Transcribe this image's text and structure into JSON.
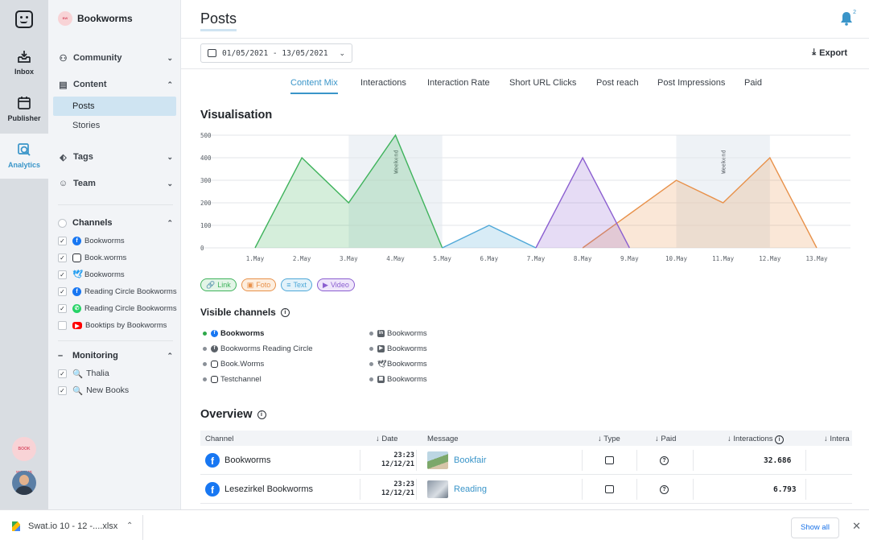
{
  "rail": {
    "items": [
      {
        "label": "Inbox",
        "icon": "inbox-icon"
      },
      {
        "label": "Publisher",
        "icon": "calendar-icon"
      },
      {
        "label": "Analytics",
        "icon": "analytics-icon"
      }
    ]
  },
  "sidebar": {
    "brand": "Bookworms",
    "nav": [
      {
        "label": "Community",
        "icon": "community-icon",
        "chevron": "⌄"
      },
      {
        "label": "Content",
        "icon": "content-icon",
        "chevron": "⌃"
      }
    ],
    "content_sub": [
      "Posts",
      "Stories"
    ],
    "nav2": [
      {
        "label": "Tags",
        "icon": "tag-icon"
      },
      {
        "label": "Team",
        "icon": "smiley-icon"
      }
    ],
    "channels_title": "Channels",
    "channels": [
      {
        "label": "Bookworms",
        "network": "facebook",
        "checked": true
      },
      {
        "label": "Book.worms",
        "network": "instagram",
        "checked": true
      },
      {
        "label": "Bookworms",
        "network": "twitter",
        "checked": true
      },
      {
        "label": "Reading Circle Bookworms",
        "network": "facebook",
        "checked": true
      },
      {
        "label": "Reading Circle Bookworms",
        "network": "whatsapp",
        "checked": true
      },
      {
        "label": "Booktips by Bookworms",
        "network": "youtube",
        "checked": false
      }
    ],
    "monitoring_title": "Monitoring",
    "monitoring": [
      {
        "label": "Thalia",
        "checked": true
      },
      {
        "label": "New Books",
        "checked": true
      }
    ]
  },
  "header": {
    "title": "Posts",
    "notification_count": "2",
    "date_range": "01/05/2021 - 13/05/2021",
    "export_label": "Export"
  },
  "tabs": [
    "Content Mix",
    "Interactions",
    "Interaction Rate",
    "Short URL Clicks",
    "Post reach",
    "Post Impressions",
    "Paid"
  ],
  "visualisation_title": "Visualisation",
  "chart_data": {
    "type": "area",
    "categories": [
      "1.May",
      "2.May",
      "3.May",
      "4.May",
      "5.May",
      "6.May",
      "7.May",
      "8.May",
      "9.May",
      "10.May",
      "11.May",
      "12.May",
      "13.May"
    ],
    "ylim": [
      0,
      500
    ],
    "yticks": [
      0,
      100,
      200,
      300,
      400,
      500
    ],
    "grid": true,
    "weekend_label": "Weekend",
    "weekend_bands": [
      [
        "3.May",
        "5.May"
      ],
      [
        "10.May",
        "12.May"
      ]
    ],
    "series": [
      {
        "name": "Link",
        "color": "#3fb35c",
        "values": [
          0,
          400,
          200,
          500,
          0,
          null,
          null,
          null,
          null,
          null,
          null,
          null,
          null
        ]
      },
      {
        "name": "Foto",
        "color": "#e8914a",
        "values": [
          null,
          null,
          null,
          null,
          null,
          null,
          null,
          0,
          150,
          300,
          200,
          400,
          0
        ]
      },
      {
        "name": "Text",
        "color": "#4fa8d8",
        "values": [
          null,
          null,
          null,
          null,
          0,
          100,
          0,
          null,
          null,
          null,
          null,
          null,
          null
        ]
      },
      {
        "name": "Video",
        "color": "#8b5fd0",
        "values": [
          null,
          null,
          null,
          null,
          null,
          null,
          0,
          400,
          0,
          null,
          null,
          null,
          null
        ]
      }
    ]
  },
  "legend": [
    {
      "label": "Link",
      "icon": "link-icon",
      "color": "#3fb35c",
      "bg": "#e3f5e7"
    },
    {
      "label": "Foto",
      "icon": "photo-icon",
      "color": "#e8914a",
      "bg": "#fdeedf"
    },
    {
      "label": "Text",
      "icon": "text-icon",
      "color": "#4fa8d8",
      "bg": "#e3f2fa"
    },
    {
      "label": "Video",
      "icon": "video-icon",
      "color": "#8b5fd0",
      "bg": "#efe6fb"
    }
  ],
  "visible_channels": {
    "title": "Visible channels",
    "left": [
      {
        "label": "Bookworms",
        "network": "facebook",
        "active": true
      },
      {
        "label": "Bookworms Reading Circle",
        "network": "facebook",
        "active": false
      },
      {
        "label": "Book.Worms",
        "network": "instagram",
        "active": false
      },
      {
        "label": "Testchannel",
        "network": "instagram",
        "active": false
      }
    ],
    "right": [
      {
        "label": "Bookworms",
        "network": "linkedin"
      },
      {
        "label": "Bookworms",
        "network": "youtube"
      },
      {
        "label": "Bookworms",
        "network": "twitter"
      },
      {
        "label": "Bookworms",
        "network": "other"
      }
    ]
  },
  "overview": {
    "title": "Overview",
    "columns": [
      "Channel",
      "Date",
      "Message",
      "Type",
      "Paid",
      "Interactions",
      "Intera"
    ],
    "rows": [
      {
        "channel": "Bookworms",
        "time": "23:23",
        "date": "12/12/21",
        "message": "Bookfair",
        "interactions": "32.686"
      },
      {
        "channel": "Lesezirkel Bookworms",
        "time": "23:23",
        "date": "12/12/21",
        "message": "Reading",
        "interactions": "6.793"
      }
    ]
  },
  "download_bar": {
    "file": "Swat.io 10 - 12 -....xlsx",
    "show_all": "Show all"
  },
  "brand_badge": "BOOK WORMS"
}
